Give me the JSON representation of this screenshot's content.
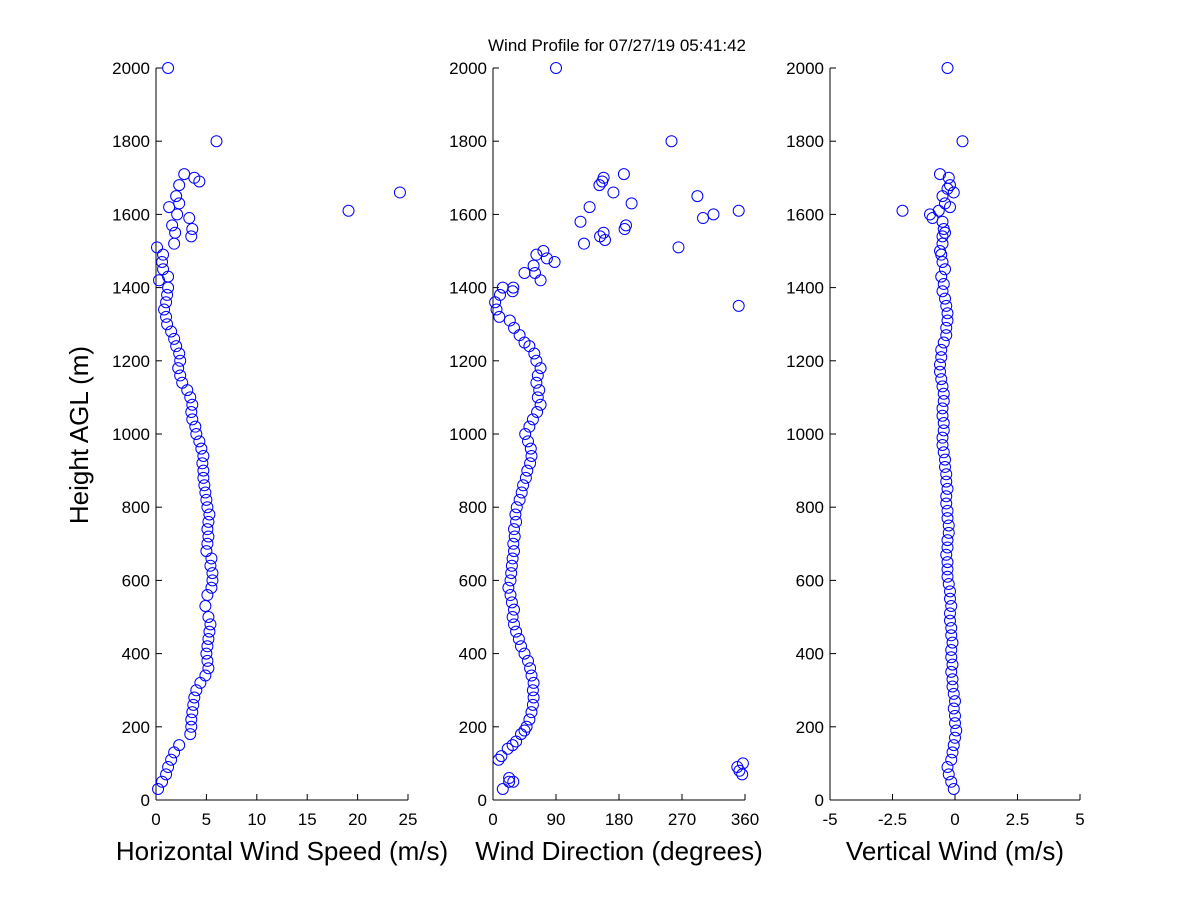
{
  "title": "Wind Profile for  07/27/19 05:41:42",
  "ylabel": "Height AGL (m)",
  "colors": {
    "marker": "#0000ff",
    "axes": "#000000",
    "background": "#ffffff"
  },
  "chart_data": [
    {
      "type": "scatter",
      "name": "speed",
      "xlabel": "Horizontal Wind Speed (m/s)",
      "ylabel": "Height AGL (m)",
      "xlim": [
        0,
        25
      ],
      "ylim": [
        0,
        2000
      ],
      "xticks": [
        0,
        5,
        10,
        15,
        20,
        25
      ],
      "xtick_labels": [
        "0",
        "5",
        "10",
        "15",
        "20",
        "25"
      ],
      "yticks": [
        0,
        200,
        400,
        600,
        800,
        1000,
        1200,
        1400,
        1600,
        1800,
        2000
      ],
      "ytick_labels": [
        "0",
        "200",
        "400",
        "600",
        "800",
        "1000",
        "1200",
        "1400",
        "1600",
        "1800",
        "2000"
      ],
      "marker": "circle-open",
      "grid": false,
      "points": [
        [
          0.2,
          30
        ],
        [
          0.6,
          50
        ],
        [
          1.0,
          70
        ],
        [
          1.2,
          90
        ],
        [
          1.5,
          110
        ],
        [
          1.8,
          130
        ],
        [
          2.3,
          150
        ],
        [
          3.4,
          180
        ],
        [
          3.5,
          200
        ],
        [
          3.5,
          220
        ],
        [
          3.6,
          240
        ],
        [
          3.7,
          260
        ],
        [
          3.8,
          280
        ],
        [
          4.0,
          300
        ],
        [
          4.4,
          320
        ],
        [
          4.9,
          340
        ],
        [
          5.2,
          360
        ],
        [
          5.1,
          380
        ],
        [
          5.0,
          400
        ],
        [
          5.1,
          420
        ],
        [
          5.2,
          440
        ],
        [
          5.3,
          460
        ],
        [
          5.4,
          480
        ],
        [
          5.2,
          500
        ],
        [
          4.9,
          530
        ],
        [
          5.1,
          560
        ],
        [
          5.5,
          580
        ],
        [
          5.6,
          600
        ],
        [
          5.6,
          620
        ],
        [
          5.4,
          640
        ],
        [
          5.5,
          660
        ],
        [
          5.0,
          680
        ],
        [
          5.1,
          700
        ],
        [
          5.2,
          720
        ],
        [
          5.1,
          740
        ],
        [
          5.2,
          760
        ],
        [
          5.3,
          780
        ],
        [
          5.1,
          800
        ],
        [
          5.0,
          820
        ],
        [
          4.9,
          840
        ],
        [
          4.8,
          860
        ],
        [
          4.7,
          880
        ],
        [
          4.7,
          900
        ],
        [
          4.6,
          920
        ],
        [
          4.7,
          940
        ],
        [
          4.5,
          960
        ],
        [
          4.3,
          980
        ],
        [
          4.0,
          1000
        ],
        [
          3.9,
          1020
        ],
        [
          3.6,
          1040
        ],
        [
          3.5,
          1060
        ],
        [
          3.6,
          1080
        ],
        [
          3.4,
          1100
        ],
        [
          3.1,
          1120
        ],
        [
          2.6,
          1140
        ],
        [
          2.4,
          1160
        ],
        [
          2.2,
          1180
        ],
        [
          2.4,
          1200
        ],
        [
          2.3,
          1220
        ],
        [
          2.0,
          1240
        ],
        [
          1.8,
          1260
        ],
        [
          1.5,
          1280
        ],
        [
          1.1,
          1300
        ],
        [
          1.0,
          1320
        ],
        [
          0.8,
          1340
        ],
        [
          1.0,
          1360
        ],
        [
          1.1,
          1380
        ],
        [
          1.2,
          1400
        ],
        [
          0.3,
          1420
        ],
        [
          1.2,
          1430
        ],
        [
          0.7,
          1450
        ],
        [
          0.6,
          1470
        ],
        [
          0.7,
          1490
        ],
        [
          0.1,
          1510
        ],
        [
          1.8,
          1520
        ],
        [
          3.5,
          1540
        ],
        [
          1.9,
          1550
        ],
        [
          3.6,
          1560
        ],
        [
          1.6,
          1570
        ],
        [
          2.1,
          1600
        ],
        [
          3.3,
          1590
        ],
        [
          19.1,
          1610
        ],
        [
          1.3,
          1620
        ],
        [
          2.3,
          1630
        ],
        [
          2.0,
          1650
        ],
        [
          24.2,
          1660
        ],
        [
          2.3,
          1680
        ],
        [
          4.3,
          1690
        ],
        [
          3.8,
          1700
        ],
        [
          2.8,
          1710
        ],
        [
          6.0,
          1800
        ],
        [
          1.2,
          2000
        ]
      ]
    },
    {
      "type": "scatter",
      "name": "direction",
      "xlabel": "Wind Direction (degrees)",
      "ylabel": "",
      "xlim": [
        0,
        360
      ],
      "ylim": [
        0,
        2000
      ],
      "xticks": [
        0,
        90,
        180,
        270,
        360
      ],
      "xtick_labels": [
        "0",
        "90",
        "180",
        "270",
        "360"
      ],
      "yticks": [
        0,
        200,
        400,
        600,
        800,
        1000,
        1200,
        1400,
        1600,
        1800,
        2000
      ],
      "ytick_labels": [
        "0",
        "200",
        "400",
        "600",
        "800",
        "1000",
        "1200",
        "1400",
        "1600",
        "1800",
        "2000"
      ],
      "marker": "circle-open",
      "grid": false,
      "points": [
        [
          14,
          30
        ],
        [
          23,
          50
        ],
        [
          29,
          50
        ],
        [
          23,
          60
        ],
        [
          349,
          90
        ],
        [
          357,
          100
        ],
        [
          352,
          80
        ],
        [
          356,
          70
        ],
        [
          8,
          110
        ],
        [
          12,
          120
        ],
        [
          21,
          140
        ],
        [
          28,
          150
        ],
        [
          33,
          160
        ],
        [
          40,
          180
        ],
        [
          45,
          190
        ],
        [
          48,
          200
        ],
        [
          52,
          220
        ],
        [
          55,
          240
        ],
        [
          57,
          260
        ],
        [
          58,
          280
        ],
        [
          57,
          300
        ],
        [
          58,
          320
        ],
        [
          55,
          340
        ],
        [
          53,
          360
        ],
        [
          50,
          380
        ],
        [
          45,
          400
        ],
        [
          40,
          420
        ],
        [
          37,
          440
        ],
        [
          33,
          460
        ],
        [
          30,
          480
        ],
        [
          28,
          500
        ],
        [
          30,
          520
        ],
        [
          27,
          540
        ],
        [
          25,
          560
        ],
        [
          22,
          580
        ],
        [
          25,
          600
        ],
        [
          26,
          620
        ],
        [
          27,
          640
        ],
        [
          28,
          660
        ],
        [
          30,
          680
        ],
        [
          29,
          700
        ],
        [
          31,
          720
        ],
        [
          30,
          740
        ],
        [
          33,
          760
        ],
        [
          32,
          780
        ],
        [
          34,
          800
        ],
        [
          38,
          820
        ],
        [
          41,
          840
        ],
        [
          43,
          860
        ],
        [
          47,
          880
        ],
        [
          49,
          900
        ],
        [
          53,
          920
        ],
        [
          55,
          940
        ],
        [
          54,
          960
        ],
        [
          50,
          980
        ],
        [
          46,
          1000
        ],
        [
          52,
          1020
        ],
        [
          57,
          1040
        ],
        [
          63,
          1060
        ],
        [
          68,
          1080
        ],
        [
          64,
          1100
        ],
        [
          66,
          1120
        ],
        [
          62,
          1140
        ],
        [
          64,
          1160
        ],
        [
          68,
          1180
        ],
        [
          62,
          1200
        ],
        [
          59,
          1220
        ],
        [
          52,
          1240
        ],
        [
          45,
          1250
        ],
        [
          38,
          1270
        ],
        [
          30,
          1290
        ],
        [
          24,
          1310
        ],
        [
          9,
          1320
        ],
        [
          5,
          1340
        ],
        [
          3,
          1360
        ],
        [
          10,
          1380
        ],
        [
          14,
          1400
        ],
        [
          28,
          1390
        ],
        [
          29,
          1400
        ],
        [
          45,
          1440
        ],
        [
          60,
          1440
        ],
        [
          58,
          1460
        ],
        [
          62,
          1490
        ],
        [
          72,
          1500
        ],
        [
          68,
          1420
        ],
        [
          88,
          1470
        ],
        [
          77,
          1480
        ],
        [
          130,
          1520
        ],
        [
          160,
          1530
        ],
        [
          158,
          1550
        ],
        [
          153,
          1540
        ],
        [
          125,
          1580
        ],
        [
          138,
          1620
        ],
        [
          188,
          1560
        ],
        [
          190,
          1570
        ],
        [
          265,
          1510
        ],
        [
          198,
          1630
        ],
        [
          300,
          1590
        ],
        [
          315,
          1600
        ],
        [
          351,
          1610
        ],
        [
          351,
          1350
        ],
        [
          152,
          1680
        ],
        [
          156,
          1690
        ],
        [
          158,
          1700
        ],
        [
          187,
          1710
        ],
        [
          172,
          1660
        ],
        [
          292,
          1650
        ],
        [
          255,
          1800
        ],
        [
          90,
          2000
        ]
      ]
    },
    {
      "type": "scatter",
      "name": "vertical",
      "xlabel": "Vertical Wind (m/s)",
      "ylabel": "",
      "xlim": [
        -5,
        5
      ],
      "ylim": [
        0,
        2000
      ],
      "xticks": [
        -5,
        -2.5,
        0,
        2.5,
        5
      ],
      "xtick_labels": [
        "-5",
        "-2.5",
        "0",
        "2.5",
        "5"
      ],
      "yticks": [
        0,
        200,
        400,
        600,
        800,
        1000,
        1200,
        1400,
        1600,
        1800,
        2000
      ],
      "ytick_labels": [
        "0",
        "200",
        "400",
        "600",
        "800",
        "1000",
        "1200",
        "1400",
        "1600",
        "1800",
        "2000"
      ],
      "marker": "circle-open",
      "grid": false,
      "points": [
        [
          -0.05,
          30
        ],
        [
          -0.15,
          50
        ],
        [
          -0.25,
          70
        ],
        [
          -0.3,
          90
        ],
        [
          -0.15,
          110
        ],
        [
          -0.1,
          130
        ],
        [
          -0.05,
          150
        ],
        [
          0.0,
          170
        ],
        [
          0.05,
          190
        ],
        [
          0.0,
          210
        ],
        [
          0.0,
          230
        ],
        [
          -0.05,
          250
        ],
        [
          0.0,
          270
        ],
        [
          -0.05,
          290
        ],
        [
          -0.1,
          310
        ],
        [
          -0.1,
          330
        ],
        [
          -0.15,
          350
        ],
        [
          -0.1,
          370
        ],
        [
          -0.15,
          390
        ],
        [
          -0.15,
          410
        ],
        [
          -0.1,
          430
        ],
        [
          -0.15,
          450
        ],
        [
          -0.15,
          470
        ],
        [
          -0.2,
          490
        ],
        [
          -0.2,
          510
        ],
        [
          -0.15,
          530
        ],
        [
          -0.2,
          550
        ],
        [
          -0.2,
          570
        ],
        [
          -0.25,
          590
        ],
        [
          -0.3,
          610
        ],
        [
          -0.3,
          630
        ],
        [
          -0.3,
          650
        ],
        [
          -0.35,
          670
        ],
        [
          -0.3,
          690
        ],
        [
          -0.3,
          710
        ],
        [
          -0.25,
          730
        ],
        [
          -0.25,
          750
        ],
        [
          -0.3,
          770
        ],
        [
          -0.3,
          790
        ],
        [
          -0.35,
          810
        ],
        [
          -0.35,
          830
        ],
        [
          -0.3,
          850
        ],
        [
          -0.35,
          870
        ],
        [
          -0.35,
          890
        ],
        [
          -0.4,
          910
        ],
        [
          -0.4,
          930
        ],
        [
          -0.45,
          950
        ],
        [
          -0.5,
          970
        ],
        [
          -0.5,
          990
        ],
        [
          -0.45,
          1010
        ],
        [
          -0.45,
          1030
        ],
        [
          -0.5,
          1050
        ],
        [
          -0.5,
          1070
        ],
        [
          -0.45,
          1090
        ],
        [
          -0.45,
          1110
        ],
        [
          -0.5,
          1130
        ],
        [
          -0.55,
          1150
        ],
        [
          -0.6,
          1170
        ],
        [
          -0.6,
          1190
        ],
        [
          -0.55,
          1210
        ],
        [
          -0.55,
          1230
        ],
        [
          -0.45,
          1250
        ],
        [
          -0.35,
          1270
        ],
        [
          -0.35,
          1290
        ],
        [
          -0.3,
          1310
        ],
        [
          -0.3,
          1330
        ],
        [
          -0.35,
          1350
        ],
        [
          -0.4,
          1370
        ],
        [
          -0.5,
          1390
        ],
        [
          -0.45,
          1410
        ],
        [
          -0.55,
          1430
        ],
        [
          -0.4,
          1450
        ],
        [
          -0.5,
          1470
        ],
        [
          -0.55,
          1490
        ],
        [
          -0.6,
          1500
        ],
        [
          -0.5,
          1520
        ],
        [
          -0.5,
          1540
        ],
        [
          -0.4,
          1550
        ],
        [
          -0.45,
          1560
        ],
        [
          -0.5,
          1580
        ],
        [
          -0.9,
          1590
        ],
        [
          -1.0,
          1600
        ],
        [
          -2.1,
          1610
        ],
        [
          -0.65,
          1610
        ],
        [
          -0.2,
          1620
        ],
        [
          -0.4,
          1630
        ],
        [
          -0.5,
          1650
        ],
        [
          -0.05,
          1660
        ],
        [
          -0.3,
          1670
        ],
        [
          -0.2,
          1680
        ],
        [
          -0.25,
          1700
        ],
        [
          -0.6,
          1710
        ],
        [
          0.3,
          1800
        ],
        [
          -0.3,
          2000
        ]
      ]
    }
  ]
}
